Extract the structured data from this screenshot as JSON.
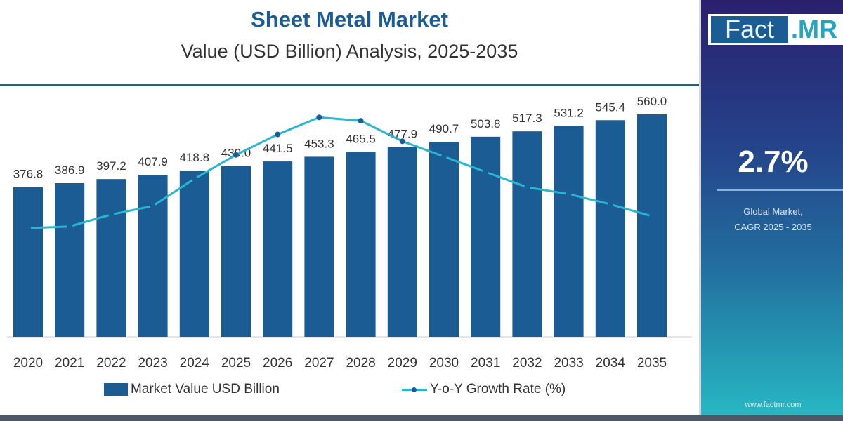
{
  "header": {
    "title": "Sheet Metal Market",
    "subtitle": "Value (USD Billion) Analysis, 2025-2035"
  },
  "panel": {
    "logo_left": "Fact",
    "logo_right": ".MR",
    "cagr_value": "2.7%",
    "cagr_label_line1": "Global Market,",
    "cagr_label_line2": "CAGR 2025 - 2035",
    "website": "www.factmr.com"
  },
  "colors": {
    "bar": "#1b5c95",
    "line": "#2bb6d0",
    "marker": "#1b5c95",
    "title": "#1b5c95"
  },
  "chart_data": {
    "type": "bar",
    "categories": [
      "2020",
      "2021",
      "2022",
      "2023",
      "2024",
      "2025",
      "2026",
      "2027",
      "2028",
      "2029",
      "2030",
      "2031",
      "2032",
      "2033",
      "2034",
      "2035"
    ],
    "series": [
      {
        "name": "Market Value USD Billion",
        "type": "bar",
        "values": [
          376.8,
          386.9,
          397.2,
          407.9,
          418.8,
          430.0,
          441.5,
          453.3,
          465.5,
          477.9,
          490.7,
          503.8,
          517.3,
          531.2,
          545.4,
          560.0
        ],
        "labels": [
          "376.8",
          "386.9",
          "397.2",
          "407.9",
          "418.8",
          "430.0",
          "441.5",
          "453.3",
          "465.5",
          "477.9",
          "490.7",
          "503.8",
          "517.3",
          "531.2",
          "545.4",
          "560.0"
        ]
      },
      {
        "name": "Y-o-Y Growth Rate (%)",
        "type": "line",
        "values": [
          2.42,
          2.43,
          2.5,
          2.55,
          2.71,
          2.85,
          2.97,
          3.07,
          3.05,
          2.93,
          2.84,
          2.75,
          2.66,
          2.62,
          2.56,
          2.49
        ]
      }
    ],
    "ylim": [
      0,
      560
    ],
    "grid": false,
    "legend": "bottom"
  }
}
